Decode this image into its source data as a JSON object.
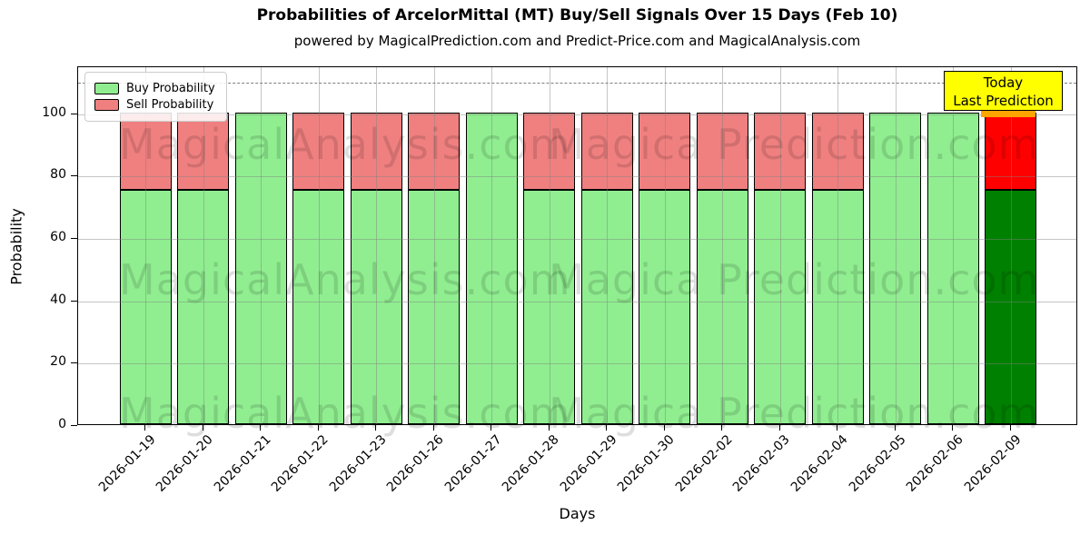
{
  "title": "Probabilities of ArcelorMittal (MT) Buy/Sell Signals Over 15 Days (Feb 10)",
  "subtitle": "powered by MagicalPrediction.com and Predict-Price.com and MagicalAnalysis.com",
  "legend": {
    "items": [
      {
        "label": "Buy Probability",
        "color": "#90EE90"
      },
      {
        "label": "Sell Probability",
        "color": "#F08080"
      }
    ]
  },
  "annotation": {
    "line1": "Today",
    "line2": "Last Prediction",
    "bg": "#FFFF00",
    "accent": "#FFA500"
  },
  "watermarks": {
    "left": "MagicalAnalysis.com",
    "right": "Magica Prediction.com"
  },
  "axes": {
    "ylabel": "Probability",
    "xlabel": "Days",
    "yticks": [
      0,
      20,
      40,
      60,
      80,
      100
    ],
    "ylim": [
      0,
      115
    ],
    "dashed_line_y": 110
  },
  "chart_data": {
    "type": "bar",
    "stacked": true,
    "title": "Probabilities of ArcelorMittal (MT) Buy/Sell Signals Over 15 Days (Feb 10)",
    "xlabel": "Days",
    "ylabel": "Probability",
    "ylim": [
      0,
      115
    ],
    "gridlines_y": [
      20,
      40,
      60,
      80,
      100
    ],
    "dashed_line_y": 110,
    "legend_position": "upper left",
    "categories": [
      "2026-01-19",
      "2026-01-20",
      "2026-01-21",
      "2026-01-22",
      "2026-01-23",
      "2026-01-26",
      "2026-01-27",
      "2026-01-28",
      "2026-01-29",
      "2026-01-30",
      "2026-02-02",
      "2026-02-03",
      "2026-02-04",
      "2026-02-05",
      "2026-02-06",
      "2026-02-09"
    ],
    "series": [
      {
        "name": "Buy Probability",
        "color": "#90EE90",
        "values": [
          75,
          75,
          100,
          75,
          75,
          75,
          100,
          75,
          75,
          75,
          75,
          75,
          75,
          100,
          100,
          75
        ]
      },
      {
        "name": "Sell Probability",
        "color": "#F08080",
        "values": [
          25,
          25,
          0,
          25,
          25,
          25,
          0,
          25,
          25,
          25,
          25,
          25,
          25,
          0,
          0,
          25
        ]
      }
    ],
    "today_index": 15,
    "today_colors": {
      "buy": "#008000",
      "sell": "#FF0000"
    }
  }
}
